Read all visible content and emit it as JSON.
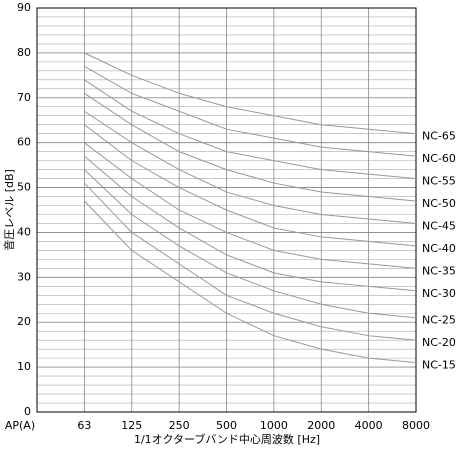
{
  "chart_data": {
    "type": "line",
    "x_label": "1/1オクターブバンド中心周波数 [Hz]",
    "y_label": "音圧レベル [dB]",
    "categories": [
      "AP(A)",
      "63",
      "125",
      "250",
      "500",
      "1000",
      "2000",
      "4000",
      "8000"
    ],
    "ylim": [
      0,
      90
    ],
    "yticks": [
      0,
      10,
      20,
      30,
      40,
      50,
      60,
      70,
      80,
      90
    ],
    "minor_grid_step": 2,
    "grid": true,
    "line_color": "#999999",
    "series": [
      {
        "name": "NC-65",
        "values": [
          null,
          80,
          75,
          71,
          68,
          66,
          64,
          63,
          62
        ]
      },
      {
        "name": "NC-60",
        "values": [
          null,
          77,
          71,
          67,
          63,
          61,
          59,
          58,
          57
        ]
      },
      {
        "name": "NC-55",
        "values": [
          null,
          74,
          67,
          62,
          58,
          56,
          54,
          53,
          52
        ]
      },
      {
        "name": "NC-50",
        "values": [
          null,
          71,
          64,
          58,
          54,
          51,
          49,
          48,
          47
        ]
      },
      {
        "name": "NC-45",
        "values": [
          null,
          67,
          60,
          54,
          49,
          46,
          44,
          43,
          42
        ]
      },
      {
        "name": "NC-40",
        "values": [
          null,
          64,
          56,
          50,
          45,
          41,
          39,
          38,
          37
        ]
      },
      {
        "name": "NC-35",
        "values": [
          null,
          60,
          52,
          45,
          40,
          36,
          34,
          33,
          32
        ]
      },
      {
        "name": "NC-30",
        "values": [
          null,
          57,
          48,
          41,
          35,
          31,
          29,
          28,
          27
        ]
      },
      {
        "name": "NC-25",
        "values": [
          null,
          54,
          44,
          37,
          31,
          27,
          24,
          22,
          21
        ]
      },
      {
        "name": "NC-20",
        "values": [
          null,
          51,
          40,
          33,
          26,
          22,
          19,
          17,
          16
        ]
      },
      {
        "name": "NC-15",
        "values": [
          null,
          47,
          36,
          29,
          22,
          17,
          14,
          12,
          11
        ]
      }
    ]
  }
}
